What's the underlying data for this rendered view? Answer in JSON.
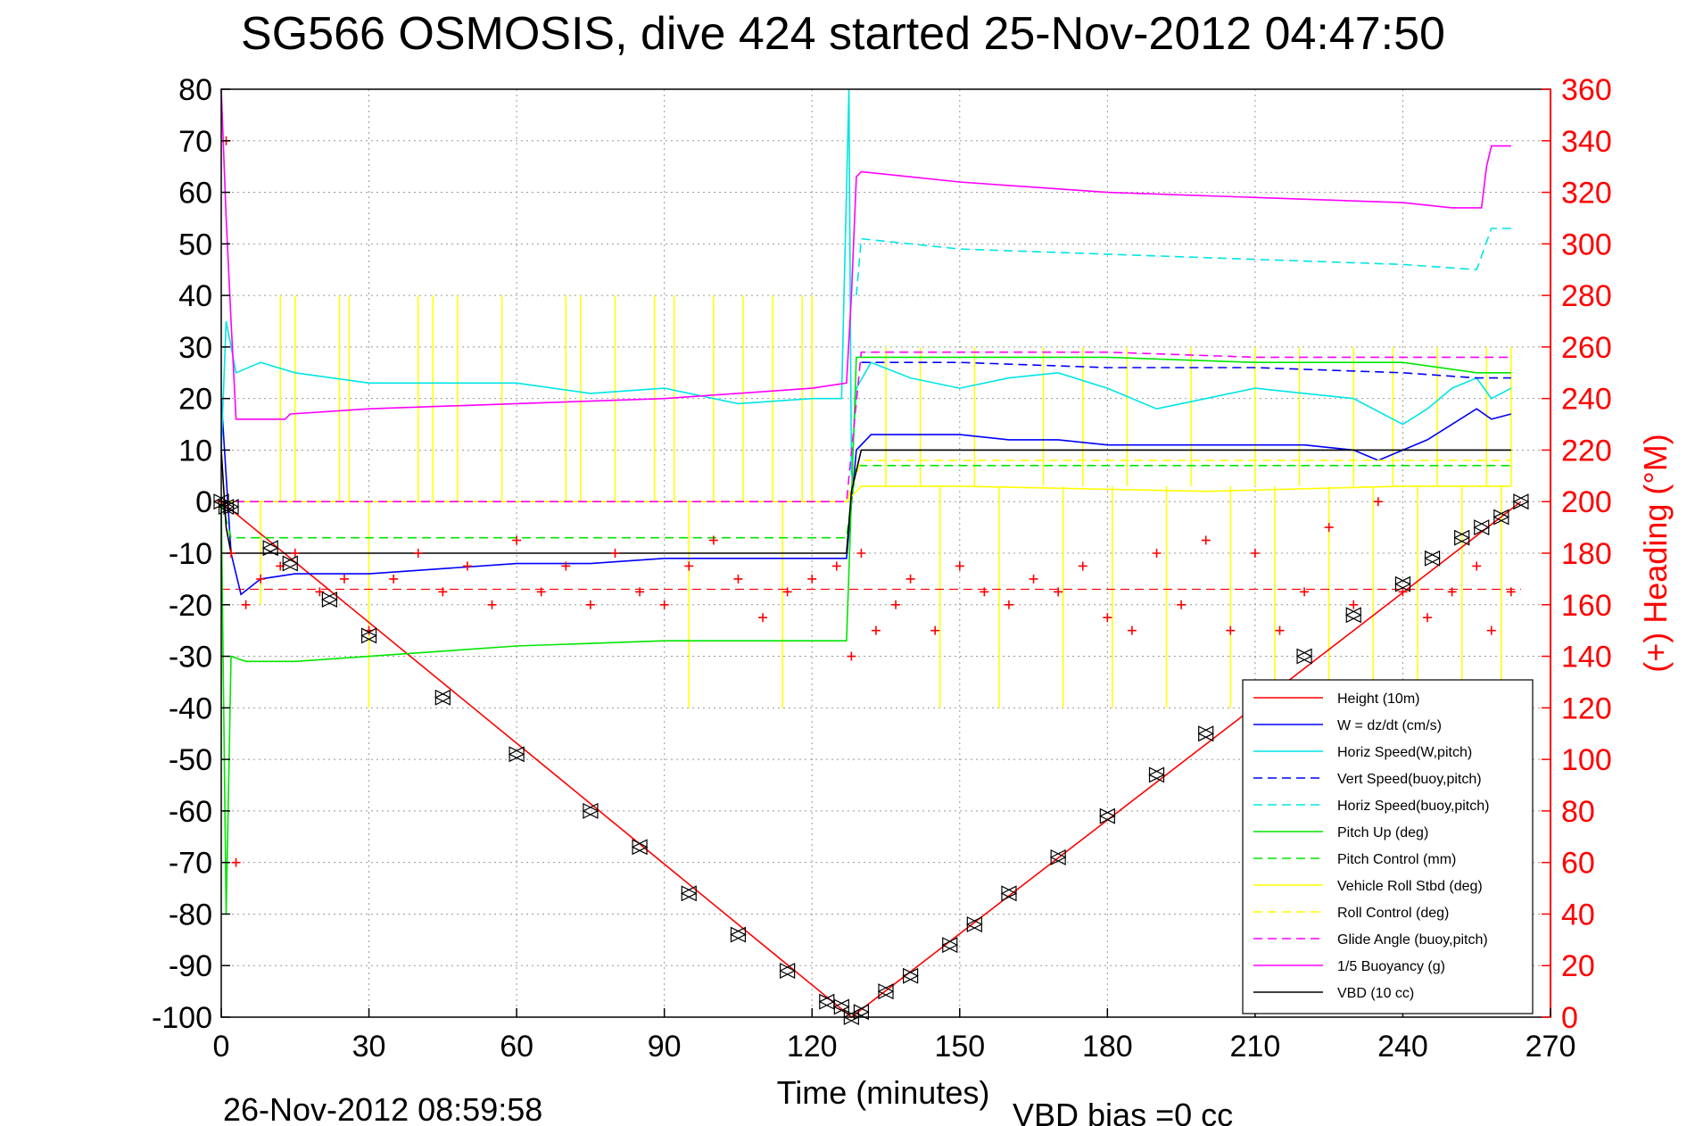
{
  "chart_data": {
    "type": "line",
    "title": "SG566 OSMOSIS, dive 424 started 25-Nov-2012 04:47:50",
    "xlabel": "Time (minutes)",
    "ylabel_right": "(+) Heading (°M)",
    "footer_timestamp": "26-Nov-2012 08:59:58",
    "footer_note": "VBD bias =0 cc",
    "xlim": [
      0,
      270
    ],
    "ylim": [
      -100,
      80
    ],
    "ylim_right": [
      0,
      360
    ],
    "x_ticks": [
      "0",
      "30",
      "60",
      "90",
      "120",
      "150",
      "180",
      "210",
      "240",
      "270"
    ],
    "y_ticks": [
      "80",
      "70",
      "60",
      "50",
      "40",
      "30",
      "20",
      "10",
      "0",
      "-10",
      "-20",
      "-30",
      "-40",
      "-50",
      "-60",
      "-70",
      "-80",
      "-90",
      "-100"
    ],
    "y_ticks_right": [
      "360",
      "340",
      "320",
      "300",
      "280",
      "260",
      "240",
      "220",
      "200",
      "180",
      "160",
      "140",
      "120",
      "100",
      "80",
      "60",
      "40",
      "20",
      "0"
    ],
    "grid": true,
    "legend_position": "bottom-right",
    "heading_mean": 166,
    "series": [
      {
        "name": "Height (10m)",
        "color": "#ff0000",
        "dash": "solid",
        "x": [
          0,
          128,
          264
        ],
        "y": [
          0,
          -100,
          0
        ]
      },
      {
        "name": "W = dz/dt (cm/s)",
        "color": "#0000ff",
        "dash": "solid",
        "x": [
          0,
          2,
          4,
          8,
          15,
          30,
          45,
          60,
          75,
          90,
          105,
          120,
          127,
          129,
          132,
          140,
          150,
          160,
          170,
          180,
          190,
          200,
          210,
          220,
          230,
          235,
          245,
          250,
          255,
          258,
          262
        ],
        "y": [
          20,
          -10,
          -18,
          -15,
          -14,
          -14,
          -13,
          -12,
          -12,
          -11,
          -11,
          -11,
          -11,
          10,
          13,
          13,
          13,
          12,
          12,
          11,
          11,
          11,
          11,
          11,
          10,
          8,
          12,
          15,
          18,
          16,
          17
        ]
      },
      {
        "name": "Horiz Speed(W,pitch)",
        "color": "#00e5e5",
        "dash": "solid",
        "x": [
          0,
          1,
          3,
          8,
          15,
          30,
          45,
          60,
          75,
          90,
          105,
          120,
          126,
          127.5,
          128,
          129,
          132,
          140,
          150,
          160,
          170,
          180,
          190,
          200,
          210,
          220,
          230,
          240,
          245,
          250,
          255,
          258,
          262
        ],
        "y": [
          10,
          35,
          25,
          27,
          25,
          23,
          23,
          23,
          21,
          22,
          19,
          20,
          20,
          80,
          5,
          22,
          27,
          24,
          22,
          24,
          25,
          22,
          18,
          20,
          22,
          21,
          20,
          15,
          18,
          22,
          24,
          20,
          22
        ]
      },
      {
        "name": "Vert Speed(buoy,pitch)",
        "color": "#0000ff",
        "dash": "dashed",
        "x": [
          130,
          150,
          180,
          210,
          240,
          255,
          262
        ],
        "y": [
          27,
          27,
          26,
          26,
          25,
          24,
          24
        ]
      },
      {
        "name": "Horiz Speed(buoy,pitch)",
        "color": "#00e5e5",
        "dash": "dashed",
        "x": [
          129,
          130,
          150,
          180,
          210,
          240,
          255,
          258,
          262
        ],
        "y": [
          40,
          51,
          49,
          48,
          47,
          46,
          45,
          53,
          53
        ]
      },
      {
        "name": "Pitch Up (deg)",
        "color": "#00e600",
        "dash": "solid",
        "x": [
          0,
          1,
          2,
          5,
          15,
          30,
          60,
          90,
          120,
          127,
          129,
          132,
          150,
          180,
          210,
          240,
          255,
          262
        ],
        "y": [
          0,
          -80,
          -30,
          -31,
          -31,
          -30,
          -28,
          -27,
          -27,
          -27,
          28,
          28,
          28,
          28,
          27,
          27,
          25,
          25
        ]
      },
      {
        "name": "Pitch Control (mm)",
        "color": "#00e600",
        "dash": "dashed",
        "x": [
          0,
          2,
          10,
          60,
          127,
          129,
          150,
          200,
          240,
          262
        ],
        "y": [
          0,
          -7,
          -7,
          -7,
          -7,
          7,
          7,
          7,
          7,
          7
        ]
      },
      {
        "name": "Vehicle Roll Stbd (deg)",
        "color": "#ffff00",
        "dash": "solid",
        "x": [
          0,
          3,
          10,
          60,
          127,
          130,
          150,
          200,
          240,
          262
        ],
        "y": [
          0,
          0,
          0,
          0,
          0,
          3,
          3,
          2,
          3,
          3
        ]
      },
      {
        "name": "Roll Control (deg)",
        "color": "#ffff00",
        "dash": "dashed",
        "x": [
          0,
          3,
          60,
          127,
          130,
          150,
          200,
          240,
          262
        ],
        "y": [
          0,
          0,
          0,
          0,
          8,
          8,
          8,
          8,
          8
        ]
      },
      {
        "name": "Glide Angle (buoy,pitch)",
        "color": "#ff00ff",
        "dash": "dashed",
        "x": [
          0,
          127,
          130,
          150,
          180,
          210,
          240,
          262
        ],
        "y": [
          0,
          0,
          29,
          29,
          29,
          28,
          28,
          28
        ]
      },
      {
        "name": "1/5 Buoyancy (g)",
        "color": "#ff00ff",
        "dash": "solid",
        "x": [
          0,
          1,
          2,
          3,
          13,
          14,
          30,
          60,
          90,
          120,
          127,
          128,
          129,
          130,
          150,
          180,
          210,
          240,
          250,
          256,
          257,
          258,
          262
        ],
        "y": [
          80,
          55,
          35,
          16,
          16,
          17,
          18,
          19,
          20,
          22,
          23,
          40,
          63,
          64,
          62,
          60,
          59,
          58,
          57,
          57,
          65,
          69,
          69
        ]
      },
      {
        "name": "VBD (10 cc)",
        "color": "#000000",
        "dash": "solid",
        "x": [
          0,
          1,
          2,
          127,
          128,
          130,
          262
        ],
        "y": [
          10,
          -5,
          -10,
          -10,
          2,
          10,
          10
        ]
      }
    ],
    "vertical_spikes": {
      "name": "Vehicle Roll Stbd (deg)",
      "x": [
        8,
        12,
        15,
        24,
        26,
        30,
        40,
        43,
        48,
        57,
        70,
        73,
        80,
        88,
        92,
        95,
        100,
        106,
        112,
        114,
        118,
        120,
        135,
        142,
        146,
        153,
        158,
        167,
        171,
        175,
        181,
        184,
        192,
        197,
        205,
        210,
        214,
        219,
        225,
        230,
        234,
        238,
        243,
        247,
        252,
        257,
        260,
        262
      ],
      "y": [
        -20,
        40,
        40,
        40,
        40,
        -40,
        40,
        40,
        40,
        40,
        40,
        40,
        40,
        40,
        40,
        -40,
        40,
        40,
        40,
        -40,
        40,
        40,
        30,
        30,
        -40,
        30,
        -40,
        30,
        -40,
        30,
        -40,
        30,
        -40,
        30,
        -40,
        30,
        -40,
        30,
        -40,
        30,
        -40,
        30,
        -40,
        30,
        -40,
        30,
        -40,
        30
      ]
    },
    "heading_points": {
      "name": "(+) Heading (°M)",
      "color": "#ff0000",
      "x": [
        0,
        1,
        2,
        3,
        5,
        8,
        12,
        15,
        20,
        25,
        30,
        35,
        40,
        45,
        50,
        55,
        60,
        65,
        70,
        75,
        80,
        85,
        90,
        95,
        100,
        105,
        110,
        115,
        120,
        125,
        128,
        130,
        133,
        137,
        140,
        145,
        150,
        155,
        160,
        165,
        170,
        175,
        180,
        185,
        190,
        195,
        200,
        205,
        210,
        215,
        220,
        225,
        230,
        235,
        240,
        245,
        250,
        255,
        258,
        262
      ],
      "y": [
        200,
        340,
        180,
        60,
        160,
        170,
        175,
        180,
        165,
        170,
        150,
        170,
        180,
        165,
        175,
        160,
        185,
        165,
        175,
        160,
        180,
        165,
        160,
        175,
        185,
        170,
        155,
        165,
        170,
        175,
        140,
        180,
        150,
        160,
        170,
        150,
        175,
        165,
        160,
        170,
        165,
        175,
        155,
        150,
        180,
        160,
        185,
        150,
        180,
        150,
        165,
        190,
        160,
        200,
        165,
        155,
        165,
        175,
        150,
        165
      ]
    },
    "depth_markers": {
      "name": "Height (10m)",
      "x": [
        0,
        1,
        2,
        10,
        14,
        22,
        30,
        45,
        60,
        75,
        85,
        95,
        105,
        115,
        123,
        126,
        128,
        130,
        135,
        140,
        148,
        153,
        160,
        170,
        180,
        190,
        200,
        210,
        220,
        230,
        240,
        246,
        252,
        256,
        260,
        264
      ],
      "y": [
        0,
        -1,
        -1,
        -9,
        -12,
        -19,
        -26,
        -38,
        -49,
        -60,
        -67,
        -76,
        -84,
        -91,
        -97,
        -98,
        -100,
        -99,
        -95,
        -92,
        -86,
        -82,
        -76,
        -69,
        -61,
        -53,
        -45,
        -38,
        -30,
        -22,
        -16,
        -11,
        -7,
        -5,
        -3,
        0
      ]
    }
  }
}
